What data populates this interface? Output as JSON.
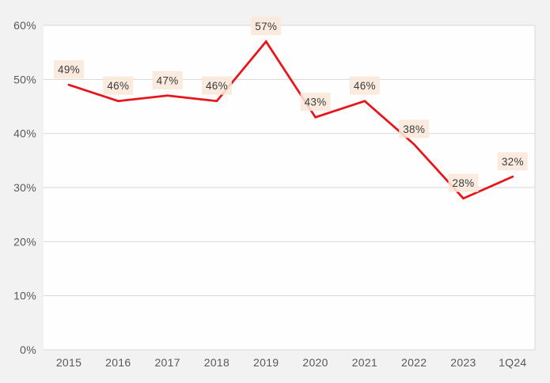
{
  "chart_data": {
    "type": "line",
    "categories": [
      "2015",
      "2016",
      "2017",
      "2018",
      "2019",
      "2020",
      "2021",
      "2022",
      "2023",
      "1Q24"
    ],
    "values": [
      49,
      46,
      47,
      46,
      57,
      43,
      46,
      38,
      28,
      32
    ],
    "data_labels": [
      "49%",
      "46%",
      "47%",
      "46%",
      "57%",
      "43%",
      "46%",
      "38%",
      "28%",
      "32%"
    ],
    "title": "",
    "xlabel": "",
    "ylabel": "",
    "ylim": [
      0,
      60
    ],
    "ytick_step": 10,
    "ytick_values": [
      0,
      10,
      20,
      30,
      40,
      50,
      60
    ],
    "ytick_labels": [
      "0%",
      "10%",
      "20%",
      "30%",
      "40%",
      "50%",
      "60%"
    ],
    "grid": true,
    "legend": false,
    "colors": {
      "page_bg": "#f2f2f2",
      "plot_bg": "#fefefe",
      "gridline": "#d8d8d8",
      "line": "#e8151a",
      "label_box_bg": "#fbe8d9",
      "label_text": "#3c3c3e",
      "axis_text": "#58595b"
    }
  }
}
